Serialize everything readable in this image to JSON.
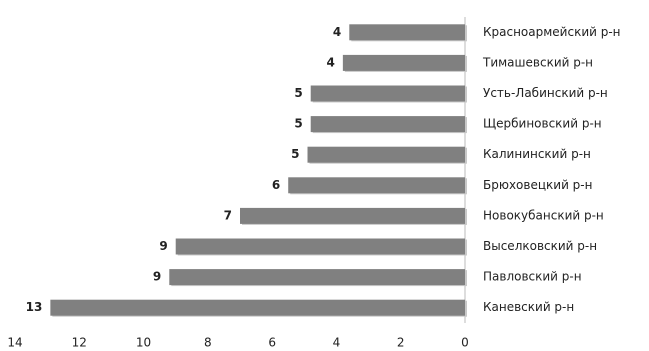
{
  "chart_data": {
    "type": "barh",
    "categories": [
      "Красноармейский р-н",
      "Тимашевский р-н",
      "Усть-Лабинский р-н",
      "Щербиновский р-н",
      "Калининский р-н",
      "Брюховецкий р-н",
      "Новокубанский р-н",
      "Выселковский р-н",
      "Павловский р-н",
      "Каневский р-н"
    ],
    "values": [
      3.6,
      3.8,
      4.8,
      4.8,
      4.9,
      5.5,
      7.0,
      9.0,
      9.2,
      12.9
    ],
    "value_labels": [
      "4",
      "4",
      "5",
      "5",
      "5",
      "6",
      "7",
      "9",
      "9",
      "13"
    ],
    "color": "#808080",
    "xlim": [
      0,
      14
    ],
    "xticks": [
      0,
      2,
      4,
      6,
      8,
      10,
      12,
      14
    ],
    "x_reversed": true
  }
}
